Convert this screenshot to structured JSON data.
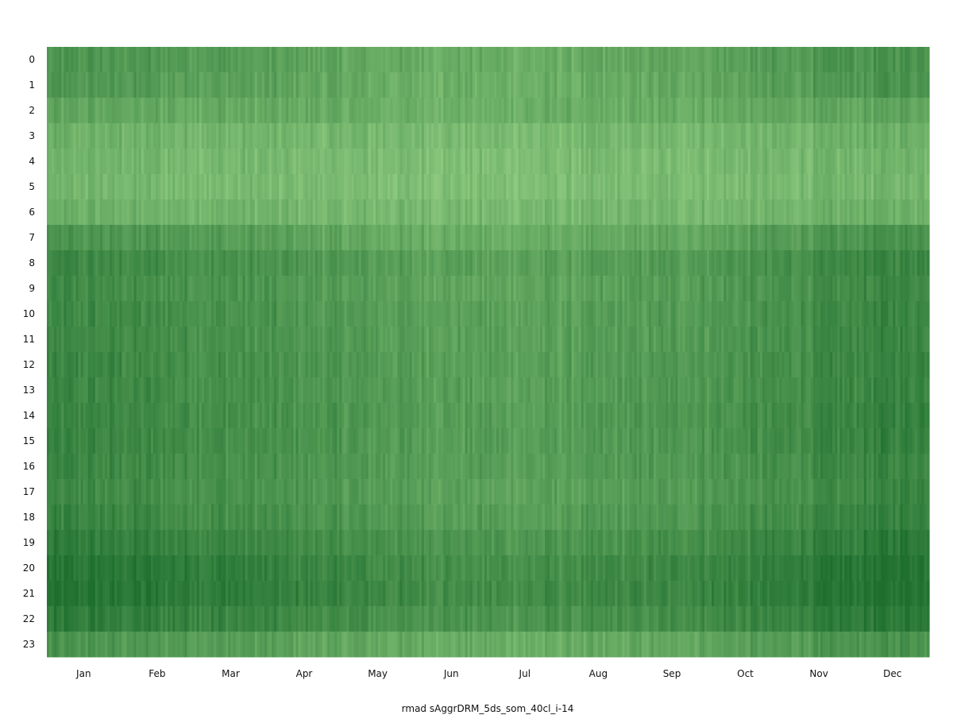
{
  "chart_data": {
    "type": "heatmap",
    "title": "",
    "xlabel": "rmad sAggrDRM_5ds_som_40cl_i-14",
    "ylabel": "",
    "x_tick_labels": [
      "Jan",
      "Feb",
      "Mar",
      "Apr",
      "May",
      "Jun",
      "Jul",
      "Aug",
      "Sep",
      "Oct",
      "Nov",
      "Dec"
    ],
    "y_tick_labels": [
      "0",
      "1",
      "2",
      "3",
      "4",
      "5",
      "6",
      "7",
      "8",
      "9",
      "10",
      "11",
      "12",
      "13",
      "14",
      "15",
      "16",
      "17",
      "18",
      "19",
      "20",
      "21",
      "22",
      "23"
    ],
    "rows": "hour of day (0 at top, 23 at bottom)",
    "columns": "day of year (365)",
    "colormap": [
      "#8cc97e",
      "#1e6e2e"
    ],
    "hourly_mean_intensity": [
      0.45,
      0.42,
      0.34,
      0.22,
      0.18,
      0.16,
      0.22,
      0.45,
      0.58,
      0.55,
      0.58,
      0.58,
      0.6,
      0.6,
      0.62,
      0.62,
      0.6,
      0.58,
      0.62,
      0.7,
      0.78,
      0.8,
      0.72,
      0.45
    ],
    "monthly_mean_intensity": [
      0.72,
      0.66,
      0.6,
      0.5,
      0.42,
      0.36,
      0.34,
      0.38,
      0.45,
      0.55,
      0.66,
      0.8
    ],
    "grid": false,
    "legend": "none"
  }
}
